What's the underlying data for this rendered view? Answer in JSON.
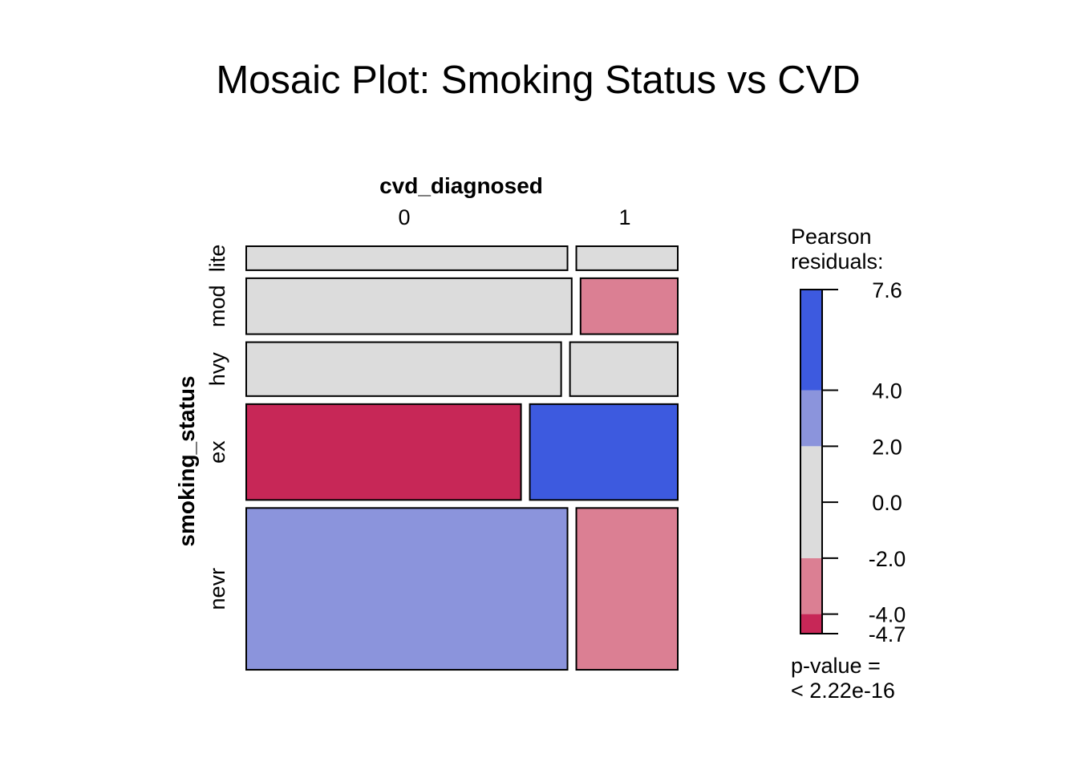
{
  "chart_data": {
    "type": "mosaic",
    "title": "Mosaic Plot: Smoking Status vs CVD",
    "x_variable": "cvd_diagnosed",
    "y_variable": "smoking_status",
    "x_levels": [
      "0",
      "1"
    ],
    "rows": [
      {
        "label": "lite",
        "height_share": 0.06,
        "cvd_1_share": 0.24,
        "fill": "#dcdcdc",
        "fill_1": "#dcdcdc"
      },
      {
        "label": "mod",
        "height_share": 0.14,
        "cvd_1_share": 0.23,
        "fill": "#dcdcdc",
        "fill_1": "#db7f93"
      },
      {
        "label": "hvy",
        "height_share": 0.135,
        "cvd_1_share": 0.255,
        "fill": "#dcdcdc",
        "fill_1": "#dcdcdc"
      },
      {
        "label": "ex",
        "height_share": 0.24,
        "cvd_1_share": 0.35,
        "fill": "#c72757",
        "fill_1": "#3d5adf"
      },
      {
        "label": "nevr",
        "height_share": 0.405,
        "cvd_1_share": 0.24,
        "fill": "#8b94dc",
        "fill_1": "#db7f93"
      }
    ],
    "legend": {
      "title_line1": "Pearson",
      "title_line2": "residuals:",
      "range": [
        -4.7,
        7.6
      ],
      "bands": [
        {
          "from": -4.7,
          "to": -4.0,
          "color": "#c72757"
        },
        {
          "from": -4.0,
          "to": -2.0,
          "color": "#db7f93"
        },
        {
          "from": -2.0,
          "to": 2.0,
          "color": "#dcdcdc"
        },
        {
          "from": 2.0,
          "to": 4.0,
          "color": "#8b94dc"
        },
        {
          "from": 4.0,
          "to": 7.6,
          "color": "#3d5adf"
        }
      ],
      "ticks": [
        {
          "value": 7.6,
          "label": "7.6"
        },
        {
          "value": 4.0,
          "label": "4.0"
        },
        {
          "value": 2.0,
          "label": "2.0"
        },
        {
          "value": 0.0,
          "label": "0.0"
        },
        {
          "value": -2.0,
          "label": "-2.0"
        },
        {
          "value": -4.0,
          "label": "-4.0"
        },
        {
          "value": -4.7,
          "label": "-4.7"
        }
      ],
      "pvalue_line1": "p-value =",
      "pvalue_line2": "< 2.22e-16"
    }
  }
}
